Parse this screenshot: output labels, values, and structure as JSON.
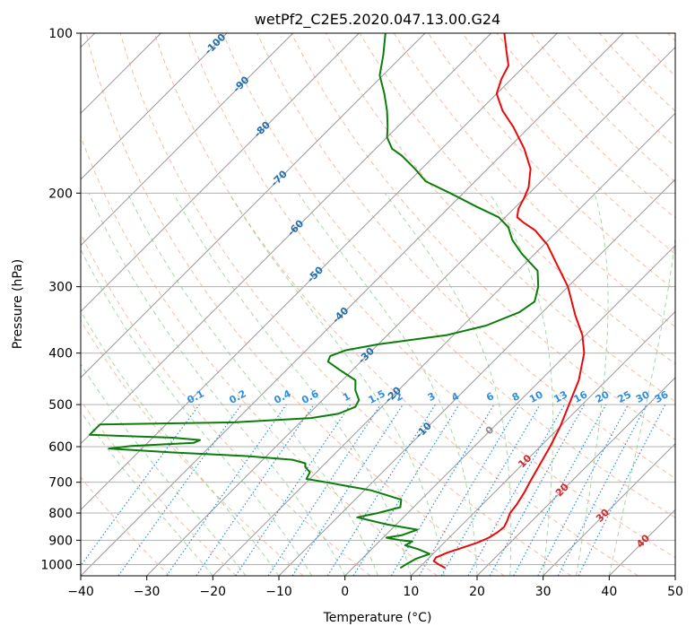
{
  "chart_data": {
    "type": "line",
    "subtype": "skew-t-log-p",
    "title": "wetPf2_C2E5.2020.047.13.00.G24",
    "xlabel": "Temperature (°C)",
    "ylabel": "Pressure (hPa)",
    "xlim": [
      -40,
      50
    ],
    "ylim": [
      1050,
      100
    ],
    "y_scale": "log",
    "grid": true,
    "x_ticks": [
      "−40",
      "−30",
      "−20",
      "−10",
      "0",
      "10",
      "20",
      "30",
      "40",
      "50"
    ],
    "x_tick_values": [
      -40,
      -30,
      -20,
      -10,
      0,
      10,
      20,
      30,
      40,
      50
    ],
    "y_ticks": [
      "100",
      "200",
      "300",
      "400",
      "500",
      "600",
      "700",
      "800",
      "900",
      "1000"
    ],
    "y_tick_values": [
      100,
      200,
      300,
      400,
      500,
      600,
      700,
      800,
      900,
      1000
    ],
    "colors": {
      "temperature": "#e8090b",
      "dewpoint": "#0a7d0a",
      "isotherm": "#999999",
      "dry_adiabat": "#f4a582",
      "moist_adiabat": "#8ecf8e",
      "mixing_ratio": "#2e8ee0",
      "isotherm_label": "#1f6fb0",
      "dry_label": "#d62728",
      "background": "#ffffff"
    },
    "series": [
      {
        "key": "temperature",
        "points": [
          [
            1015,
            14.0
          ],
          [
            1000,
            12.5
          ],
          [
            985,
            11.2
          ],
          [
            970,
            11.0
          ],
          [
            950,
            12.0
          ],
          [
            930,
            13.5
          ],
          [
            910,
            15.0
          ],
          [
            890,
            16.0
          ],
          [
            870,
            16.5
          ],
          [
            850,
            16.7
          ],
          [
            830,
            16.3
          ],
          [
            800,
            15.5
          ],
          [
            770,
            15.2
          ],
          [
            730,
            14.5
          ],
          [
            700,
            13.8
          ],
          [
            650,
            12.7
          ],
          [
            600,
            11.5
          ],
          [
            550,
            10.0
          ],
          [
            500,
            8.0
          ],
          [
            450,
            5.8
          ],
          [
            400,
            2.5
          ],
          [
            370,
            -0.5
          ],
          [
            340,
            -4.5
          ],
          [
            300,
            -10.0
          ],
          [
            270,
            -15.5
          ],
          [
            250,
            -19.5
          ],
          [
            235,
            -23.5
          ],
          [
            227,
            -26.5
          ],
          [
            222,
            -28.2
          ],
          [
            214,
            -29.3
          ],
          [
            205,
            -30.0
          ],
          [
            195,
            -31.0
          ],
          [
            180,
            -33.5
          ],
          [
            165,
            -37.5
          ],
          [
            150,
            -42.5
          ],
          [
            140,
            -46.5
          ],
          [
            130,
            -50.0
          ],
          [
            122,
            -51.5
          ],
          [
            115,
            -52.5
          ],
          [
            108,
            -55.0
          ],
          [
            100,
            -58.0
          ]
        ]
      },
      {
        "key": "dewpoint",
        "points": [
          [
            1015,
            7.2
          ],
          [
            1000,
            7.5
          ],
          [
            975,
            8.2
          ],
          [
            955,
            9.5
          ],
          [
            935,
            7.0
          ],
          [
            920,
            4.5
          ],
          [
            905,
            5.0
          ],
          [
            900,
            3.0
          ],
          [
            890,
            0.5
          ],
          [
            880,
            2.5
          ],
          [
            860,
            4.0
          ],
          [
            840,
            -1.5
          ],
          [
            815,
            -7.0
          ],
          [
            800,
            -4.5
          ],
          [
            780,
            -2.0
          ],
          [
            755,
            -3.0
          ],
          [
            725,
            -9.0
          ],
          [
            700,
            -17.0
          ],
          [
            690,
            -20.5
          ],
          [
            670,
            -21.0
          ],
          [
            655,
            -22.5
          ],
          [
            645,
            -23.0
          ],
          [
            635,
            -25.5
          ],
          [
            625,
            -33.0
          ],
          [
            615,
            -45.0
          ],
          [
            605,
            -55.0
          ],
          [
            598,
            -52.0
          ],
          [
            590,
            -43.0
          ],
          [
            583,
            -42.5
          ],
          [
            577,
            -47.0
          ],
          [
            570,
            -60.0
          ],
          [
            545,
            -60.0
          ],
          [
            540,
            -40.0
          ],
          [
            530,
            -29.0
          ],
          [
            520,
            -25.5
          ],
          [
            505,
            -24.0
          ],
          [
            490,
            -24.5
          ],
          [
            470,
            -26.5
          ],
          [
            450,
            -28.0
          ],
          [
            430,
            -32.0
          ],
          [
            415,
            -35.0
          ],
          [
            405,
            -35.5
          ],
          [
            395,
            -34.0
          ],
          [
            385,
            -30.0
          ],
          [
            370,
            -21.0
          ],
          [
            355,
            -16.5
          ],
          [
            335,
            -13.5
          ],
          [
            320,
            -12.8
          ],
          [
            300,
            -14.5
          ],
          [
            280,
            -17.0
          ],
          [
            260,
            -22.0
          ],
          [
            245,
            -25.5
          ],
          [
            232,
            -28.0
          ],
          [
            222,
            -31.0
          ],
          [
            212,
            -36.0
          ],
          [
            200,
            -42.0
          ],
          [
            190,
            -47.5
          ],
          [
            180,
            -51.0
          ],
          [
            170,
            -55.0
          ],
          [
            165,
            -57.5
          ],
          [
            157,
            -60.0
          ],
          [
            150,
            -61.5
          ],
          [
            140,
            -64.0
          ],
          [
            130,
            -67.0
          ],
          [
            120,
            -70.5
          ],
          [
            110,
            -73.0
          ],
          [
            100,
            -76.0
          ]
        ]
      }
    ],
    "isotherm_labels": [
      "-100",
      "-90",
      "-80",
      "-70",
      "-60",
      "-50",
      "-40",
      "-30",
      "-20",
      "-10",
      "0",
      "10",
      "20",
      "30",
      "40"
    ],
    "isotherm_label_values": [
      -100,
      -90,
      -80,
      -70,
      -60,
      -50,
      -40,
      -30,
      -20,
      -10,
      0,
      10,
      20,
      30,
      40
    ],
    "mixing_ratio_labels": [
      "0.1",
      "0.2",
      "0.4",
      "0.6",
      "1",
      "1.5",
      "2",
      "3",
      "4",
      "6",
      "8",
      "10",
      "13",
      "16",
      "20",
      "25",
      "30",
      "36"
    ],
    "mixing_ratio_values": [
      0.1,
      0.2,
      0.4,
      0.6,
      1,
      1.5,
      2,
      3,
      4,
      6,
      8,
      10,
      13,
      16,
      20,
      25,
      30,
      36
    ]
  }
}
